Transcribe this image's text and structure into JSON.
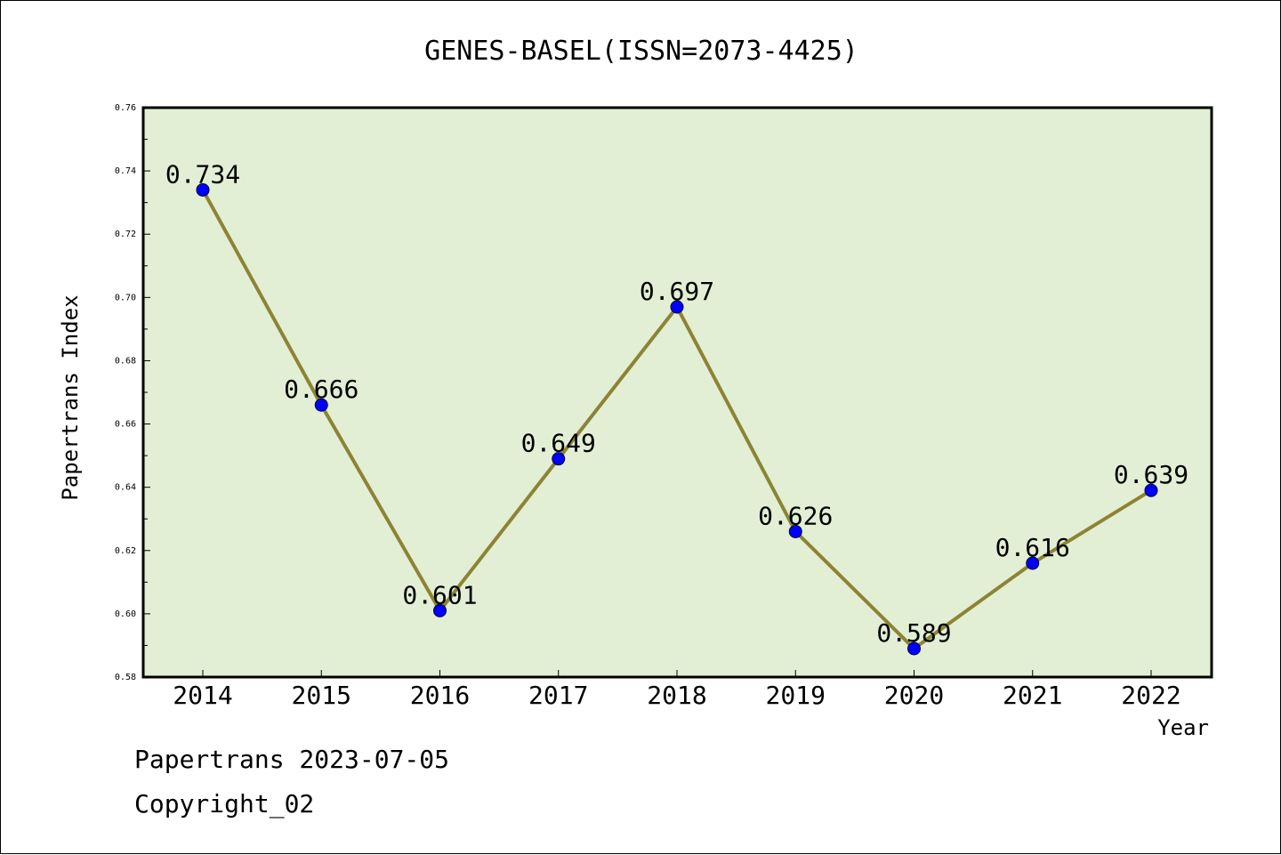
{
  "footer": {
    "date_line": "Papertrans 2023-07-05",
    "copyright_line": "Copyright_02"
  },
  "chart_data": {
    "type": "line",
    "title": "GENES-BASEL(ISSN=2073-4425)",
    "xlabel": "Year",
    "ylabel": "Papertrans Index",
    "categories": [
      "2014",
      "2015",
      "2016",
      "2017",
      "2018",
      "2019",
      "2020",
      "2021",
      "2022"
    ],
    "series": [
      {
        "values": [
          0.734,
          0.666,
          0.601,
          0.649,
          0.697,
          0.626,
          0.589,
          0.616,
          0.639
        ],
        "data_labels": [
          "0.734",
          "0.666",
          "0.601",
          "0.649",
          "0.697",
          "0.626",
          "0.589",
          "0.616",
          "0.639"
        ],
        "line_color": "#8c8433",
        "marker_color": "#0000ff"
      }
    ],
    "ylim": [
      0.58,
      0.76
    ],
    "yticks": [
      "0.58",
      "0.60",
      "0.62",
      "0.64",
      "0.66",
      "0.68",
      "0.70",
      "0.72",
      "0.74",
      "0.76"
    ],
    "plot_background": "#e2efd5",
    "grid": false,
    "legend": "none"
  }
}
